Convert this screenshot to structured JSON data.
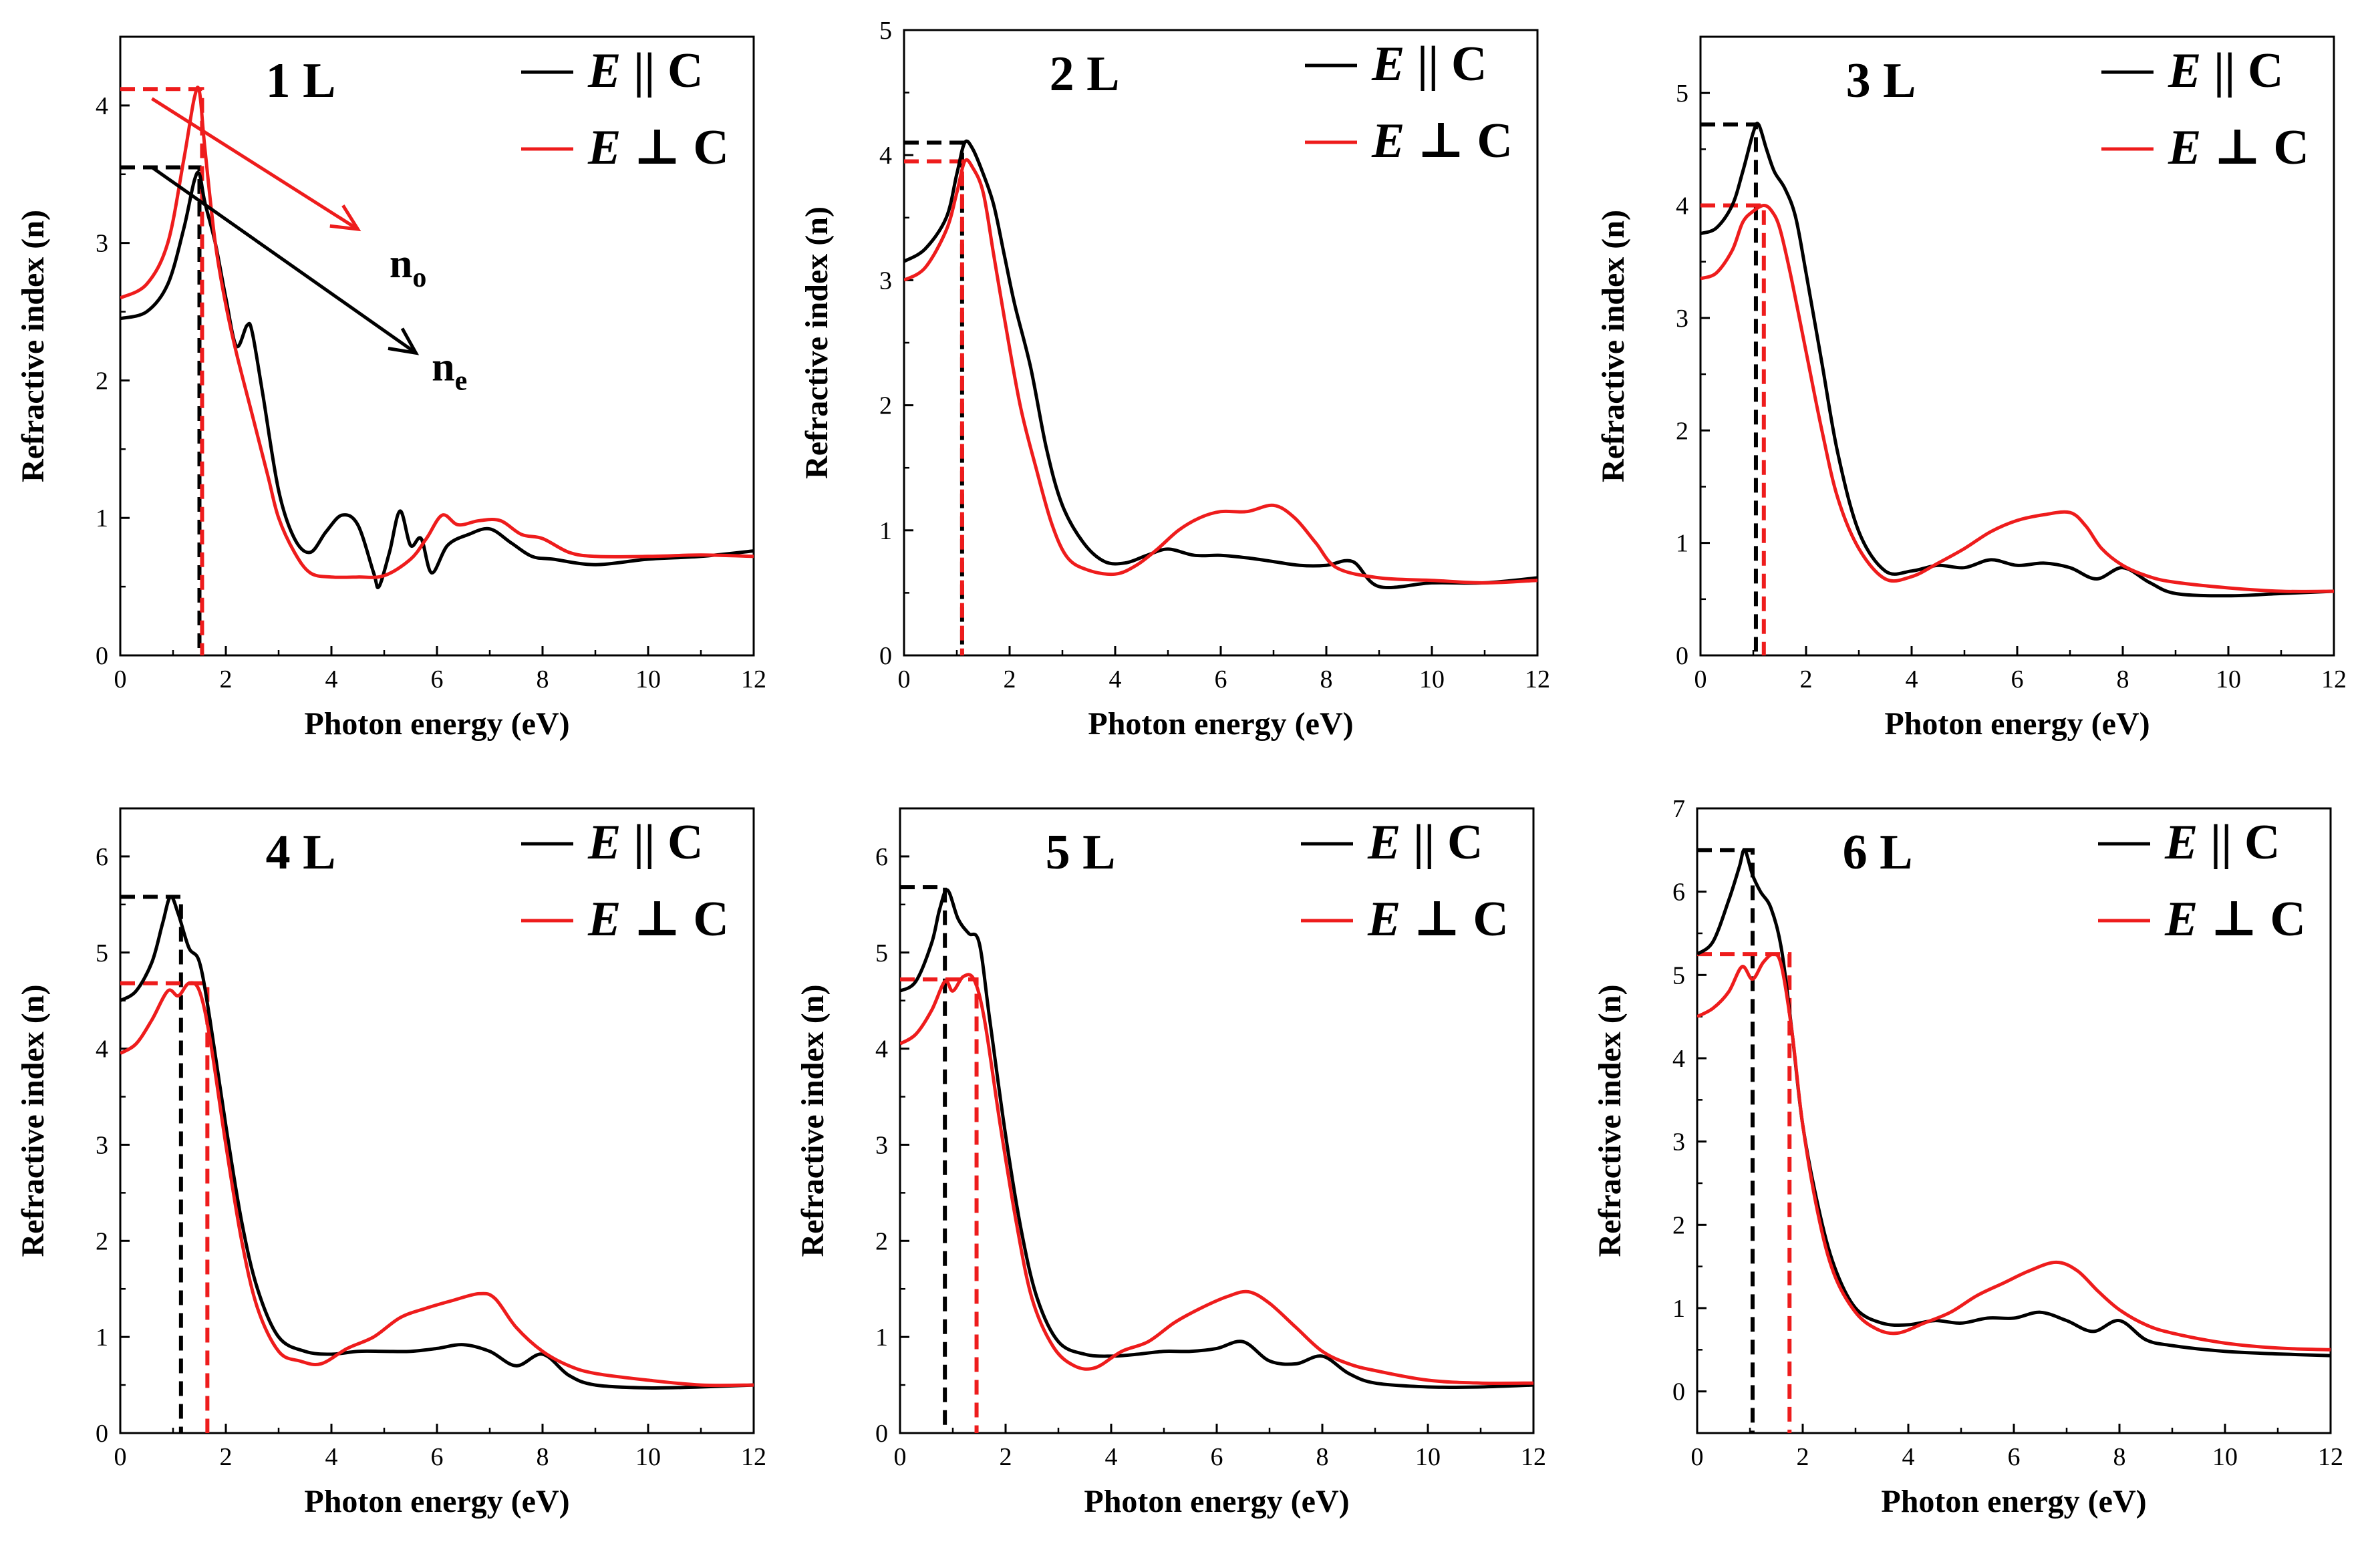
{
  "figure": {
    "colors": {
      "parallel": "#000000",
      "perpendicular": "#ee1c1c",
      "axis": "#000000"
    }
  },
  "chart_data": [
    {
      "type": "line",
      "title": "1 L",
      "xlabel": "Photon energy (eV)",
      "ylabel": "Refractive index (n)",
      "xlim": [
        0,
        12
      ],
      "ylim": [
        0,
        4.5
      ],
      "xticks": [
        "0",
        "2",
        "4",
        "6",
        "8",
        "10",
        "12"
      ],
      "yticks": [
        "0",
        "1",
        "2",
        "3",
        "4"
      ],
      "legend": [
        "E || C",
        "E ⊥ C"
      ],
      "series": [
        {
          "name": "E || C",
          "color": "#000000",
          "x": [
            0,
            0.5,
            0.9,
            1.2,
            1.4,
            1.5,
            1.6,
            1.8,
            2.0,
            2.2,
            2.4,
            2.5,
            2.7,
            3.0,
            3.3,
            3.6,
            3.9,
            4.2,
            4.5,
            4.8,
            4.9,
            5.1,
            5.3,
            5.5,
            5.7,
            5.9,
            6.2,
            6.6,
            7.0,
            7.4,
            7.8,
            8.2,
            9.0,
            10,
            11,
            12
          ],
          "y": [
            2.45,
            2.5,
            2.7,
            3.1,
            3.45,
            3.5,
            3.3,
            3.0,
            2.6,
            2.25,
            2.4,
            2.35,
            1.9,
            1.2,
            0.85,
            0.75,
            0.9,
            1.02,
            0.95,
            0.6,
            0.5,
            0.75,
            1.05,
            0.8,
            0.85,
            0.6,
            0.8,
            0.88,
            0.92,
            0.82,
            0.72,
            0.7,
            0.66,
            0.7,
            0.72,
            0.76
          ]
        },
        {
          "name": "E ⊥ C",
          "color": "#ee1c1c",
          "x": [
            0,
            0.5,
            0.9,
            1.2,
            1.4,
            1.5,
            1.6,
            1.8,
            2.0,
            2.2,
            2.5,
            2.8,
            3.0,
            3.3,
            3.6,
            4.0,
            4.5,
            5.0,
            5.5,
            5.8,
            6.1,
            6.4,
            6.8,
            7.2,
            7.6,
            8.0,
            8.5,
            9.0,
            10,
            11,
            12
          ],
          "y": [
            2.6,
            2.7,
            3.0,
            3.6,
            4.05,
            4.1,
            3.7,
            3.0,
            2.55,
            2.2,
            1.75,
            1.3,
            1.0,
            0.75,
            0.6,
            0.57,
            0.57,
            0.58,
            0.7,
            0.85,
            1.02,
            0.95,
            0.98,
            0.98,
            0.88,
            0.85,
            0.75,
            0.72,
            0.72,
            0.73,
            0.72
          ]
        }
      ],
      "annotations": {
        "dashed_lines": [
          {
            "color": "#000000",
            "x": 1.5,
            "y": 3.55
          },
          {
            "color": "#ee1c1c",
            "x": 1.55,
            "y": 4.12
          }
        ],
        "arrows": [
          {
            "color": "#ee1c1c",
            "from": [
              0.6,
              4.05
            ],
            "to": [
              4.5,
              3.1
            ],
            "label": "n",
            "subscript": "o",
            "label_at": [
              5.1,
              2.75
            ]
          },
          {
            "color": "#000000",
            "from": [
              0.6,
              3.55
            ],
            "to": [
              5.6,
              2.2
            ],
            "label": "n",
            "subscript": "e",
            "label_at": [
              5.9,
              2.0
            ]
          }
        ]
      }
    },
    {
      "type": "line",
      "title": "2 L",
      "xlabel": "Photon energy (eV)",
      "ylabel": "Refractive index (n)",
      "xlim": [
        0,
        12
      ],
      "ylim": [
        0,
        5
      ],
      "xticks": [
        "0",
        "2",
        "4",
        "6",
        "8",
        "10",
        "12"
      ],
      "yticks": [
        "0",
        "1",
        "2",
        "3",
        "4",
        "5"
      ],
      "legend": [
        "E || C",
        "E ⊥ C"
      ],
      "series": [
        {
          "name": "E || C",
          "color": "#000000",
          "x": [
            0,
            0.4,
            0.8,
            1.0,
            1.15,
            1.3,
            1.5,
            1.7,
            1.9,
            2.1,
            2.4,
            2.7,
            3.0,
            3.4,
            3.8,
            4.2,
            4.6,
            5.0,
            5.5,
            6.0,
            6.5,
            7.0,
            7.5,
            8.0,
            8.5,
            9.0,
            10,
            11,
            12
          ],
          "y": [
            3.15,
            3.25,
            3.5,
            3.85,
            4.1,
            4.05,
            3.85,
            3.6,
            3.2,
            2.8,
            2.3,
            1.65,
            1.2,
            0.9,
            0.75,
            0.74,
            0.8,
            0.85,
            0.8,
            0.8,
            0.78,
            0.75,
            0.72,
            0.72,
            0.75,
            0.55,
            0.58,
            0.58,
            0.62
          ]
        },
        {
          "name": "E ⊥ C",
          "color": "#ee1c1c",
          "x": [
            0,
            0.4,
            0.8,
            1.0,
            1.15,
            1.3,
            1.5,
            1.7,
            1.9,
            2.2,
            2.5,
            2.8,
            3.1,
            3.5,
            4.0,
            4.4,
            4.8,
            5.2,
            5.6,
            6.0,
            6.5,
            7.0,
            7.4,
            7.8,
            8.2,
            9.0,
            10,
            11,
            12
          ],
          "y": [
            3.0,
            3.1,
            3.4,
            3.7,
            3.95,
            3.9,
            3.7,
            3.2,
            2.7,
            2.0,
            1.5,
            1.05,
            0.78,
            0.68,
            0.65,
            0.72,
            0.85,
            1.0,
            1.1,
            1.15,
            1.15,
            1.2,
            1.1,
            0.9,
            0.7,
            0.62,
            0.6,
            0.58,
            0.6
          ]
        }
      ],
      "annotations": {
        "dashed_lines": [
          {
            "color": "#000000",
            "x": 1.1,
            "y": 4.1
          },
          {
            "color": "#ee1c1c",
            "x": 1.1,
            "y": 3.95
          }
        ]
      }
    },
    {
      "type": "line",
      "title": "3 L",
      "xlabel": "Photon energy (eV)",
      "ylabel": "Refractive index (n)",
      "xlim": [
        0,
        12
      ],
      "ylim": [
        0,
        5.5
      ],
      "xticks": [
        "0",
        "2",
        "4",
        "6",
        "8",
        "10",
        "12"
      ],
      "yticks": [
        "0",
        "1",
        "2",
        "3",
        "4",
        "5"
      ],
      "legend": [
        "E || C",
        "E ⊥ C"
      ],
      "series": [
        {
          "name": "E || C",
          "color": "#000000",
          "x": [
            0,
            0.3,
            0.6,
            0.8,
            1.0,
            1.1,
            1.25,
            1.4,
            1.6,
            1.8,
            2.0,
            2.3,
            2.6,
            3.0,
            3.5,
            4.0,
            4.5,
            5.0,
            5.5,
            6.0,
            6.5,
            7.0,
            7.5,
            8.0,
            8.5,
            9.0,
            10,
            11,
            12
          ],
          "y": [
            3.75,
            3.8,
            4.0,
            4.3,
            4.65,
            4.72,
            4.5,
            4.3,
            4.15,
            3.9,
            3.4,
            2.6,
            1.8,
            1.1,
            0.75,
            0.75,
            0.8,
            0.78,
            0.85,
            0.8,
            0.82,
            0.78,
            0.68,
            0.78,
            0.65,
            0.55,
            0.53,
            0.55,
            0.57
          ]
        },
        {
          "name": "E ⊥ C",
          "color": "#ee1c1c",
          "x": [
            0,
            0.3,
            0.6,
            0.8,
            1.0,
            1.2,
            1.35,
            1.5,
            1.7,
            2.0,
            2.3,
            2.6,
            3.0,
            3.5,
            4.0,
            4.5,
            5.0,
            5.5,
            6.0,
            6.5,
            7.0,
            7.3,
            7.6,
            8.0,
            8.5,
            9.0,
            10,
            11,
            12
          ],
          "y": [
            3.35,
            3.4,
            3.6,
            3.85,
            3.95,
            4.0,
            3.95,
            3.8,
            3.4,
            2.7,
            2.0,
            1.4,
            0.95,
            0.68,
            0.7,
            0.82,
            0.95,
            1.1,
            1.2,
            1.25,
            1.27,
            1.15,
            0.95,
            0.8,
            0.7,
            0.65,
            0.6,
            0.57,
            0.57
          ]
        }
      ],
      "annotations": {
        "dashed_lines": [
          {
            "color": "#000000",
            "x": 1.05,
            "y": 4.72
          },
          {
            "color": "#ee1c1c",
            "x": 1.2,
            "y": 4.0
          }
        ]
      }
    },
    {
      "type": "line",
      "title": "4 L",
      "xlabel": "Photon energy (eV)",
      "ylabel": "Refractive index (n)",
      "xlim": [
        0,
        12
      ],
      "ylim": [
        0,
        6.5
      ],
      "xticks": [
        "0",
        "2",
        "4",
        "6",
        "8",
        "10",
        "12"
      ],
      "yticks": [
        "0",
        "1",
        "2",
        "3",
        "4",
        "5",
        "6"
      ],
      "legend": [
        "E || C",
        "E ⊥ C"
      ],
      "series": [
        {
          "name": "E || C",
          "color": "#000000",
          "x": [
            0,
            0.3,
            0.6,
            0.8,
            0.95,
            1.1,
            1.3,
            1.5,
            1.7,
            2.0,
            2.3,
            2.6,
            3.0,
            3.5,
            4.0,
            4.5,
            5.0,
            5.5,
            6.0,
            6.5,
            7.0,
            7.5,
            8.0,
            8.5,
            9.0,
            10,
            11,
            12
          ],
          "y": [
            4.5,
            4.6,
            4.9,
            5.3,
            5.58,
            5.4,
            5.05,
            4.9,
            4.3,
            3.2,
            2.2,
            1.5,
            1.0,
            0.85,
            0.82,
            0.85,
            0.85,
            0.85,
            0.88,
            0.92,
            0.85,
            0.7,
            0.82,
            0.6,
            0.5,
            0.47,
            0.48,
            0.5
          ]
        },
        {
          "name": "E ⊥ C",
          "color": "#ee1c1c",
          "x": [
            0,
            0.3,
            0.6,
            0.9,
            1.1,
            1.3,
            1.5,
            1.7,
            2.0,
            2.3,
            2.6,
            3.0,
            3.4,
            3.8,
            4.3,
            4.8,
            5.3,
            5.8,
            6.3,
            6.8,
            7.1,
            7.5,
            8.0,
            8.5,
            9.0,
            10,
            11,
            12
          ],
          "y": [
            3.95,
            4.05,
            4.3,
            4.6,
            4.55,
            4.68,
            4.6,
            4.1,
            3.0,
            2.0,
            1.3,
            0.85,
            0.75,
            0.72,
            0.88,
            1.0,
            1.2,
            1.3,
            1.38,
            1.45,
            1.4,
            1.1,
            0.85,
            0.7,
            0.62,
            0.55,
            0.5,
            0.5
          ]
        }
      ],
      "annotations": {
        "dashed_lines": [
          {
            "color": "#000000",
            "x": 1.15,
            "y": 5.58
          },
          {
            "color": "#ee1c1c",
            "x": 1.65,
            "y": 4.68
          }
        ]
      }
    },
    {
      "type": "line",
      "title": "5 L",
      "xlabel": "Photon energy (eV)",
      "ylabel": "Refractive index (n)",
      "xlim": [
        0,
        12
      ],
      "ylim": [
        0,
        6.5
      ],
      "xticks": [
        "0",
        "2",
        "4",
        "6",
        "8",
        "10",
        "12"
      ],
      "yticks": [
        "0",
        "1",
        "2",
        "3",
        "4",
        "5",
        "6"
      ],
      "legend": [
        "E || C",
        "E ⊥ C"
      ],
      "series": [
        {
          "name": "E || C",
          "color": "#000000",
          "x": [
            0,
            0.3,
            0.6,
            0.75,
            0.9,
            1.1,
            1.3,
            1.5,
            1.7,
            2.0,
            2.3,
            2.6,
            3.0,
            3.5,
            4.0,
            4.5,
            5.0,
            5.5,
            6.0,
            6.5,
            7.0,
            7.5,
            8.0,
            8.5,
            9.0,
            10,
            11,
            12
          ],
          "y": [
            4.6,
            4.7,
            5.1,
            5.45,
            5.65,
            5.35,
            5.2,
            5.1,
            4.3,
            3.1,
            2.1,
            1.4,
            0.95,
            0.82,
            0.8,
            0.82,
            0.85,
            0.85,
            0.88,
            0.95,
            0.75,
            0.72,
            0.8,
            0.62,
            0.52,
            0.48,
            0.48,
            0.5
          ]
        },
        {
          "name": "E ⊥ C",
          "color": "#ee1c1c",
          "x": [
            0,
            0.3,
            0.6,
            0.85,
            1.0,
            1.2,
            1.4,
            1.6,
            1.9,
            2.2,
            2.5,
            2.9,
            3.3,
            3.7,
            4.2,
            4.7,
            5.2,
            5.7,
            6.2,
            6.6,
            7.0,
            7.5,
            8.0,
            8.5,
            9.0,
            10,
            11,
            12
          ],
          "y": [
            4.05,
            4.15,
            4.4,
            4.7,
            4.6,
            4.75,
            4.72,
            4.3,
            3.2,
            2.2,
            1.4,
            0.9,
            0.7,
            0.68,
            0.85,
            0.95,
            1.15,
            1.3,
            1.42,
            1.47,
            1.35,
            1.1,
            0.85,
            0.72,
            0.65,
            0.55,
            0.52,
            0.52
          ]
        }
      ],
      "annotations": {
        "dashed_lines": [
          {
            "color": "#000000",
            "x": 0.85,
            "y": 5.68
          },
          {
            "color": "#ee1c1c",
            "x": 1.45,
            "y": 4.72
          }
        ]
      }
    },
    {
      "type": "line",
      "title": "6 L",
      "xlabel": "Photon energy (eV)",
      "ylabel": "Refractive index (n)",
      "xlim": [
        0,
        12
      ],
      "ylim": [
        -0.5,
        7
      ],
      "xticks": [
        "0",
        "2",
        "4",
        "6",
        "8",
        "10",
        "12"
      ],
      "yticks": [
        "0",
        "1",
        "2",
        "3",
        "4",
        "5",
        "6",
        "7"
      ],
      "legend": [
        "E || C",
        "E ⊥ C"
      ],
      "series": [
        {
          "name": "E || C",
          "color": "#000000",
          "x": [
            0,
            0.3,
            0.6,
            0.8,
            0.9,
            1.05,
            1.2,
            1.4,
            1.6,
            1.8,
            2.0,
            2.3,
            2.6,
            3.0,
            3.5,
            4.0,
            4.5,
            5.0,
            5.5,
            6.0,
            6.5,
            7.0,
            7.5,
            8.0,
            8.5,
            9.0,
            10,
            11,
            12
          ],
          "y": [
            5.25,
            5.4,
            5.9,
            6.3,
            6.5,
            6.2,
            6.0,
            5.8,
            5.3,
            4.3,
            3.2,
            2.2,
            1.5,
            1.0,
            0.82,
            0.8,
            0.85,
            0.82,
            0.88,
            0.88,
            0.95,
            0.85,
            0.72,
            0.85,
            0.62,
            0.55,
            0.48,
            0.45,
            0.43
          ]
        },
        {
          "name": "E ⊥ C",
          "color": "#ee1c1c",
          "x": [
            0,
            0.3,
            0.6,
            0.85,
            1.05,
            1.25,
            1.45,
            1.6,
            1.8,
            2.0,
            2.3,
            2.6,
            3.0,
            3.4,
            3.8,
            4.3,
            4.8,
            5.3,
            5.8,
            6.3,
            6.8,
            7.2,
            7.6,
            8.0,
            8.5,
            9.0,
            10,
            11,
            12
          ],
          "y": [
            4.5,
            4.6,
            4.8,
            5.1,
            4.95,
            5.15,
            5.25,
            5.1,
            4.3,
            3.2,
            2.1,
            1.4,
            0.95,
            0.75,
            0.7,
            0.82,
            0.95,
            1.15,
            1.3,
            1.45,
            1.55,
            1.45,
            1.2,
            0.98,
            0.8,
            0.7,
            0.58,
            0.52,
            0.5
          ]
        }
      ],
      "annotations": {
        "dashed_lines": [
          {
            "color": "#000000",
            "x": 1.05,
            "y": 6.5
          },
          {
            "color": "#ee1c1c",
            "x": 1.75,
            "y": 5.25
          }
        ]
      }
    }
  ]
}
